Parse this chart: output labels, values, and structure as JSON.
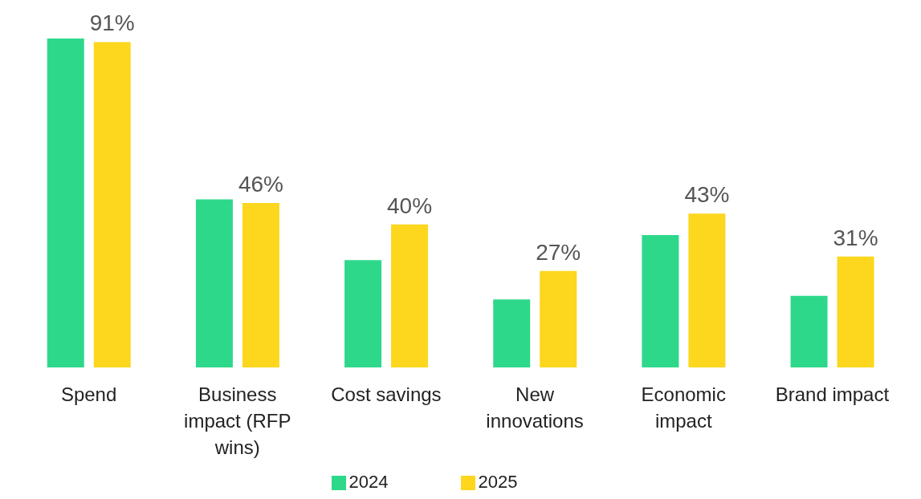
{
  "chart_data": {
    "type": "bar",
    "categories": [
      "Spend",
      "Business impact (RFP wins)",
      "Cost savings",
      "New innovations",
      "Economic impact",
      "Brand impact"
    ],
    "series": [
      {
        "name": "2024",
        "color": "#2ed88a",
        "values": [
          92,
          47,
          30,
          19,
          37,
          20
        ]
      },
      {
        "name": "2025",
        "color": "#fdd61e",
        "values": [
          91,
          46,
          40,
          27,
          43,
          31
        ],
        "value_labels": [
          "91%",
          "46%",
          "40%",
          "27%",
          "43%",
          "31%"
        ]
      }
    ],
    "legend": "bottom",
    "grid": false
  }
}
